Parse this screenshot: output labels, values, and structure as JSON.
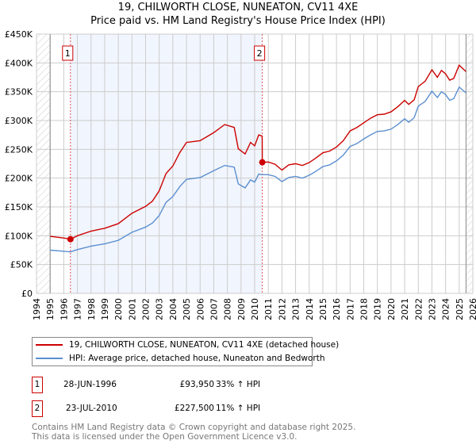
{
  "chart_data": {
    "type": "line",
    "title": "19, CHILWORTH CLOSE, NUNEATON, CV11 4XE",
    "subtitle": "Price paid vs. HM Land Registry's House Price Index (HPI)",
    "xlim": [
      1994,
      2026
    ],
    "ylim": [
      0,
      450000
    ],
    "x_ticks": [
      "1994",
      "1995",
      "1996",
      "1997",
      "1998",
      "1999",
      "2000",
      "2001",
      "2002",
      "2003",
      "2004",
      "2005",
      "2006",
      "2007",
      "2008",
      "2009",
      "2010",
      "2011",
      "2012",
      "2013",
      "2014",
      "2015",
      "2016",
      "2017",
      "2018",
      "2019",
      "2020",
      "2021",
      "2022",
      "2023",
      "2024",
      "2025",
      "2026"
    ],
    "y_ticks": [
      {
        "v": 0,
        "label": "£0"
      },
      {
        "v": 50000,
        "label": "£50K"
      },
      {
        "v": 100000,
        "label": "£100K"
      },
      {
        "v": 150000,
        "label": "£150K"
      },
      {
        "v": 200000,
        "label": "£200K"
      },
      {
        "v": 250000,
        "label": "£250K"
      },
      {
        "v": 300000,
        "label": "£300K"
      },
      {
        "v": 350000,
        "label": "£350K"
      },
      {
        "v": 400000,
        "label": "£400K"
      },
      {
        "v": 450000,
        "label": "£450K"
      }
    ],
    "grid": true,
    "data_range": [
      1995,
      2025.5
    ],
    "series": [
      {
        "name": "19, CHILWORTH CLOSE, NUNEATON, CV11 4XE (detached house)",
        "color": "#cc0000",
        "x": [
          1995,
          1996,
          1996.49,
          1997,
          1998,
          1999,
          2000,
          2001,
          2002,
          2002.5,
          2003,
          2003.5,
          2004,
          2004.5,
          2005,
          2006,
          2007,
          2007.8,
          2008.5,
          2008.8,
          2009.3,
          2009.7,
          2010,
          2010.3,
          2010.55,
          2010.56,
          2011,
          2011.5,
          2012,
          2012.5,
          2013,
          2013.5,
          2014,
          2014.5,
          2015,
          2015.5,
          2016,
          2016.5,
          2017,
          2017.5,
          2018,
          2018.5,
          2019,
          2019.5,
          2020,
          2020.5,
          2021,
          2021.3,
          2021.7,
          2022,
          2022.5,
          2023,
          2023.4,
          2023.7,
          2024,
          2024.3,
          2024.6,
          2025,
          2025.5
        ],
        "y": [
          99000,
          96000,
          93950,
          100000,
          108000,
          113000,
          121000,
          139000,
          151000,
          160000,
          178000,
          208000,
          221000,
          244000,
          262000,
          265000,
          279000,
          293000,
          288000,
          251000,
          242000,
          262000,
          256000,
          275000,
          273000,
          227500,
          228000,
          224000,
          214000,
          223000,
          225000,
          222000,
          227000,
          235000,
          244000,
          247000,
          254000,
          265000,
          282000,
          288000,
          296000,
          304000,
          310000,
          311000,
          315000,
          324000,
          335000,
          328000,
          336000,
          359000,
          368000,
          388000,
          375000,
          387000,
          381000,
          370000,
          373000,
          396000,
          385000
        ]
      },
      {
        "name": "HPI: Average price, detached house, Nuneaton and Bedworth",
        "color": "#5b8fd0",
        "x": [
          1995,
          1996,
          1996.49,
          1997,
          1998,
          1999,
          2000,
          2001,
          2002,
          2002.5,
          2003,
          2003.5,
          2004,
          2004.5,
          2005,
          2006,
          2007,
          2007.8,
          2008.5,
          2008.8,
          2009.3,
          2009.7,
          2010,
          2010.3,
          2010.56,
          2011,
          2011.5,
          2012,
          2012.5,
          2013,
          2013.5,
          2014,
          2014.5,
          2015,
          2015.5,
          2016,
          2016.5,
          2017,
          2017.5,
          2018,
          2018.5,
          2019,
          2019.5,
          2020,
          2020.5,
          2021,
          2021.3,
          2021.7,
          2022,
          2022.5,
          2023,
          2023.4,
          2023.7,
          2024,
          2024.3,
          2024.6,
          2025,
          2025.5
        ],
        "y": [
          75000,
          73000,
          72000,
          76000,
          82000,
          86000,
          92000,
          106000,
          115000,
          122000,
          135000,
          158000,
          168000,
          185000,
          198000,
          201000,
          213000,
          222000,
          219000,
          190000,
          183000,
          197000,
          193000,
          207000,
          206000,
          206000,
          203000,
          194000,
          201000,
          203000,
          200000,
          205000,
          212000,
          220000,
          223000,
          230000,
          240000,
          255000,
          260000,
          268000,
          275000,
          281000,
          282000,
          285000,
          293000,
          303000,
          297000,
          305000,
          325000,
          333000,
          351000,
          340000,
          350000,
          345000,
          335000,
          338000,
          358000,
          348000
        ]
      }
    ],
    "annotations": [
      {
        "label": "1",
        "x": 1996.49,
        "y": 93950
      },
      {
        "label": "2",
        "x": 2010.56,
        "y": 227500
      }
    ],
    "legend": "below"
  },
  "sales": [
    {
      "num": "1",
      "date": "28-JUN-1996",
      "price": "£93,950",
      "hpi": "33% ↑ HPI"
    },
    {
      "num": "2",
      "date": "23-JUL-2010",
      "price": "£227,500",
      "hpi": "11% ↑ HPI"
    }
  ],
  "footer": [
    "Contains HM Land Registry data © Crown copyright and database right 2025.",
    "This data is licensed under the Open Government Licence v3.0."
  ]
}
